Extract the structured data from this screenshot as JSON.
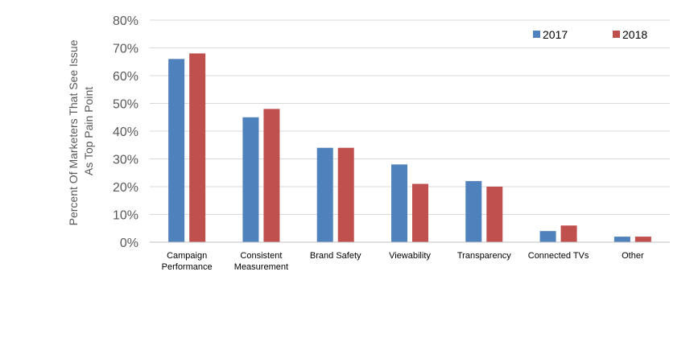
{
  "chart_data": {
    "type": "bar",
    "categories": [
      [
        "Campaign",
        "Performance"
      ],
      [
        "Consistent",
        "Measurement"
      ],
      [
        "Brand Safety"
      ],
      [
        "Viewability"
      ],
      [
        "Transparency"
      ],
      [
        "Connected TVs"
      ],
      [
        "Other"
      ]
    ],
    "series": [
      {
        "name": "2017",
        "color": "#4F81BD",
        "values": [
          66,
          45,
          34,
          28,
          22,
          4,
          2
        ]
      },
      {
        "name": "2018",
        "color": "#C0504D",
        "values": [
          68,
          48,
          34,
          21,
          20,
          6,
          2
        ]
      }
    ],
    "ylabel": [
      "Percent Of Marketers That See Issue",
      "As Top Pain Point"
    ],
    "ylim": [
      0,
      80
    ],
    "yticks": [
      "0%",
      "10%",
      "20%",
      "30%",
      "40%",
      "50%",
      "60%",
      "70%",
      "80%"
    ],
    "grid": true,
    "legend_position": "top-right"
  }
}
